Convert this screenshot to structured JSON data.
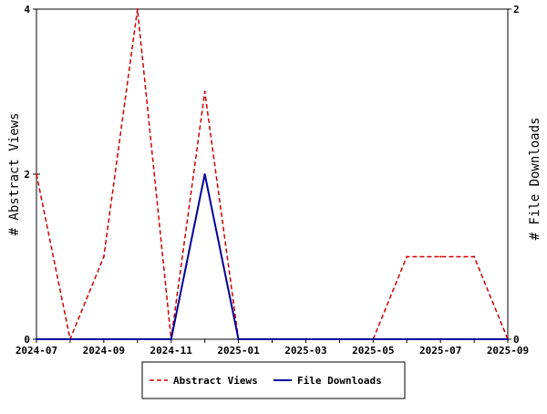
{
  "chart_data": {
    "type": "line",
    "x": [
      "2024-07",
      "2024-08",
      "2024-09",
      "2024-10",
      "2024-11",
      "2024-12",
      "2025-01",
      "2025-02",
      "2025-03",
      "2025-04",
      "2025-05",
      "2025-06",
      "2025-07",
      "2025-08",
      "2025-09"
    ],
    "xticks": [
      "2024-07",
      "2024-09",
      "2024-11",
      "2025-01",
      "2025-03",
      "2025-05",
      "2025-07",
      "2025-09"
    ],
    "series": [
      {
        "name": "Abstract Views",
        "axis": "left",
        "color": "#cc0000",
        "style": "dashed",
        "values": [
          2,
          0,
          1,
          4,
          0,
          3,
          0,
          0,
          0,
          0,
          0,
          1,
          1,
          1,
          0
        ]
      },
      {
        "name": "File Downloads",
        "axis": "right",
        "color": "#000099",
        "style": "solid",
        "values": [
          0,
          0,
          0,
          0,
          0,
          1,
          0,
          0,
          0,
          0,
          0,
          0,
          0,
          0,
          0
        ]
      }
    ],
    "ylabel_left": "# Abstract Views",
    "ylabel_right": "# File Downloads",
    "ylim_left": [
      0,
      4
    ],
    "ylim_right": [
      0,
      2
    ],
    "yticks_left": [
      "0",
      "2",
      "4"
    ],
    "yticks_right": [
      "0",
      "2"
    ],
    "legend_position": "bottom-center",
    "grid": false
  }
}
